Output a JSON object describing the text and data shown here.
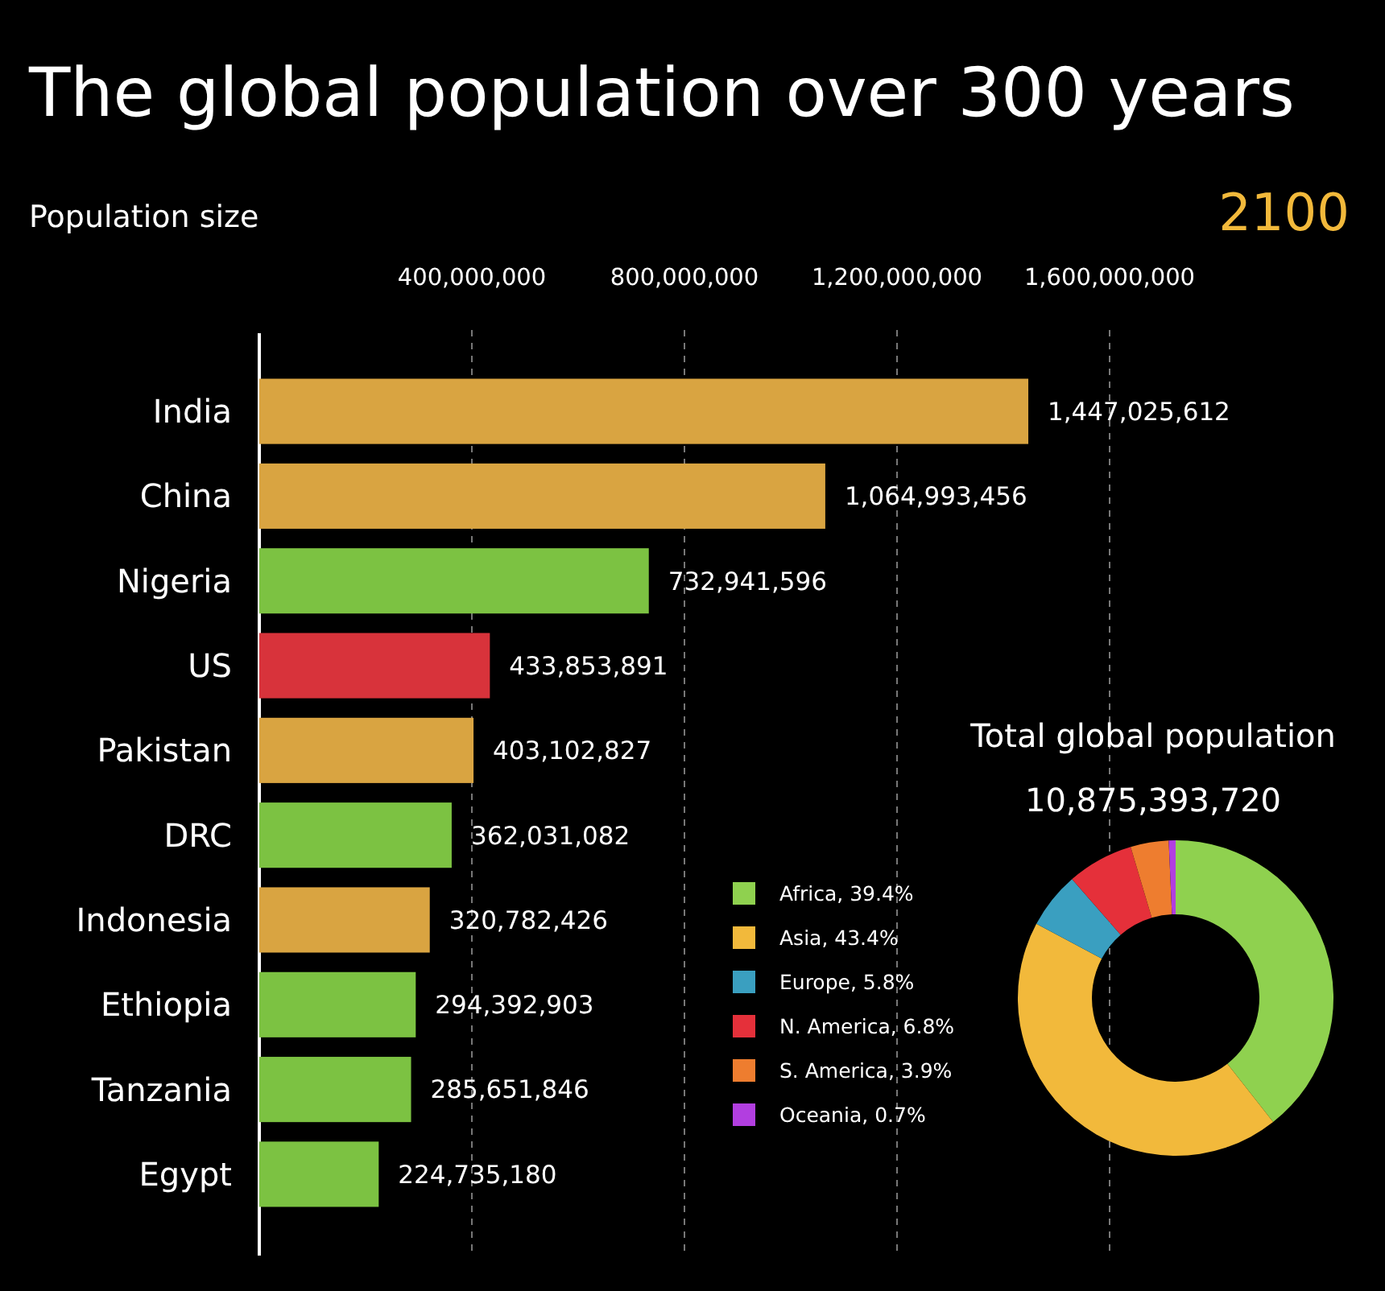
{
  "chart_data": [
    {
      "type": "bar",
      "orientation": "horizontal",
      "title": "The global population over 300 years",
      "xlabel": "Population size",
      "annotations": [
        "2100"
      ],
      "categories": [
        "India",
        "China",
        "Nigeria",
        "US",
        "Pakistan",
        "DRC",
        "Indonesia",
        "Ethiopia",
        "Tanzania",
        "Egypt"
      ],
      "values": [
        1447025612,
        1064993456,
        732941596,
        433853891,
        403102827,
        362031082,
        320782426,
        294392903,
        285651846,
        224735180
      ],
      "colors": [
        "#d9a441",
        "#d9a441",
        "#7cc242",
        "#d8333b",
        "#d9a441",
        "#7cc242",
        "#d9a441",
        "#7cc242",
        "#7cc242",
        "#7cc242"
      ],
      "xlim": [
        0,
        1600000000
      ],
      "xticks": [
        {
          "value": 400000000,
          "label": "400,000,000"
        },
        {
          "value": 800000000,
          "label": "800,000,000"
        },
        {
          "value": 1200000000,
          "label": "1,200,000,000"
        },
        {
          "value": 1600000000,
          "label": "1,600,000,000"
        }
      ],
      "value_labels": [
        "1,447,025,612",
        "1,064,993,456",
        "732,941,596",
        "433,853,891",
        "403,102,827",
        "362,031,082",
        "320,782,426",
        "294,392,903",
        "285,651,846",
        "224,735,180"
      ],
      "grid": "x"
    },
    {
      "type": "donut",
      "title": "Total global population",
      "subtitle": "10,875,393,720",
      "categories": [
        "Africa, 39.4%",
        "Asia, 43.4%",
        "Europe, 5.8%",
        "N. America, 6.8%",
        "S. America, 3.9%",
        "Oceania, 0.7%"
      ],
      "values": [
        39.4,
        43.4,
        5.8,
        6.8,
        3.9,
        0.7
      ],
      "colors": [
        "#8fd14f",
        "#f2b93b",
        "#3a9fc0",
        "#e5303a",
        "#ee7d2f",
        "#b23ee0"
      ],
      "legend": "left"
    }
  ]
}
